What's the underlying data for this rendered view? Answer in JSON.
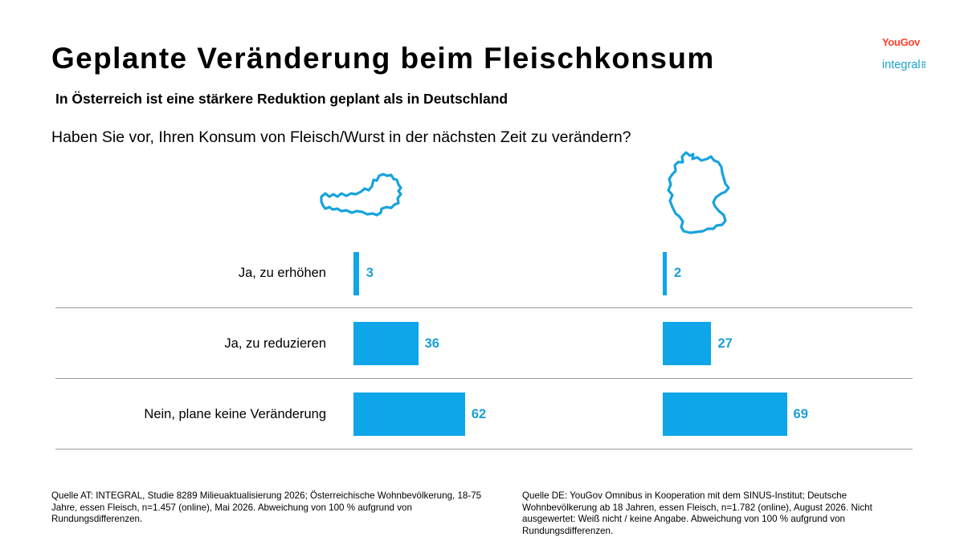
{
  "title": "Geplante Veränderung beim Fleischkonsum",
  "subtitle": "In Österreich ist eine stärkere Reduktion geplant als in Deutschland",
  "question": "Haben Sie vor, Ihren Konsum von Fleisch/Wurst in der nächsten Zeit zu verändern?",
  "logos": {
    "yougov": "YouGov",
    "integral": "integral"
  },
  "icons": {
    "austria": "austria-map-icon",
    "germany": "germany-map-icon"
  },
  "colors": {
    "bar": "#0ea6e9",
    "value_text": "#1a9fd6",
    "yougov": "#ff412c",
    "integral": "#17a3cc",
    "divider": "#9a9a9a"
  },
  "chart_data": {
    "type": "bar",
    "orientation": "horizontal",
    "categories": [
      "Ja, zu erhöhen",
      "Ja, zu reduzieren",
      "Nein, plane keine Veränderung"
    ],
    "series": [
      {
        "values": [
          3,
          36,
          62
        ]
      },
      {
        "values": [
          2,
          27,
          69
        ]
      }
    ],
    "value_labels": [
      [
        "3",
        "36",
        "62"
      ],
      [
        "2",
        "27",
        "69"
      ]
    ],
    "xlim": [
      0,
      100
    ],
    "grid": false
  },
  "sources": {
    "at": "Quelle AT: INTEGRAL, Studie 8289 Milieuaktualisierung 2026; Österreichische Wohnbevölkerung, 18-75 Jahre, essen Fleisch,  n=1.457 (online), Mai 2026. Abweichung von 100 % aufgrund von Rundungsdifferenzen.",
    "de": "Quelle DE: YouGov Omnibus in Kooperation mit dem SINUS-Institut; Deutsche Wohnbevölkerung ab 18 Jahren, essen Fleisch, n=1.782 (online), August 2026. Nicht ausgewertet: Weiß nicht / keine Angabe. Abweichung von 100 % aufgrund von Rundungsdifferenzen."
  }
}
